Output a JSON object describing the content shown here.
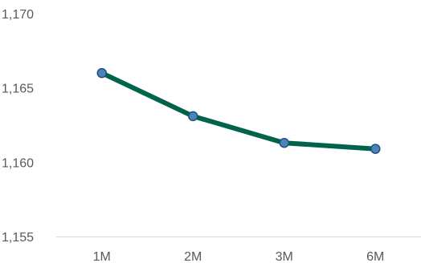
{
  "chart_data": {
    "type": "line",
    "title": "",
    "xlabel": "",
    "ylabel": "",
    "categories": [
      "1M",
      "2M",
      "3M",
      "6M"
    ],
    "series": [
      {
        "values": [
          1166.0,
          1163.1,
          1161.3,
          1160.9
        ]
      }
    ],
    "ylim": [
      1155,
      1170
    ],
    "yticks": [
      1155,
      1160,
      1165,
      1170
    ],
    "ytick_labels": [
      "1,155",
      "1,160",
      "1,165",
      "1,170"
    ],
    "grid": false,
    "legend": "none",
    "colors": {
      "line": "#00634a",
      "marker_fill": "#4a84b8",
      "marker_stroke": "#1f4f7a",
      "axis": "#d9d9d9",
      "tick_text": "#595959"
    }
  }
}
